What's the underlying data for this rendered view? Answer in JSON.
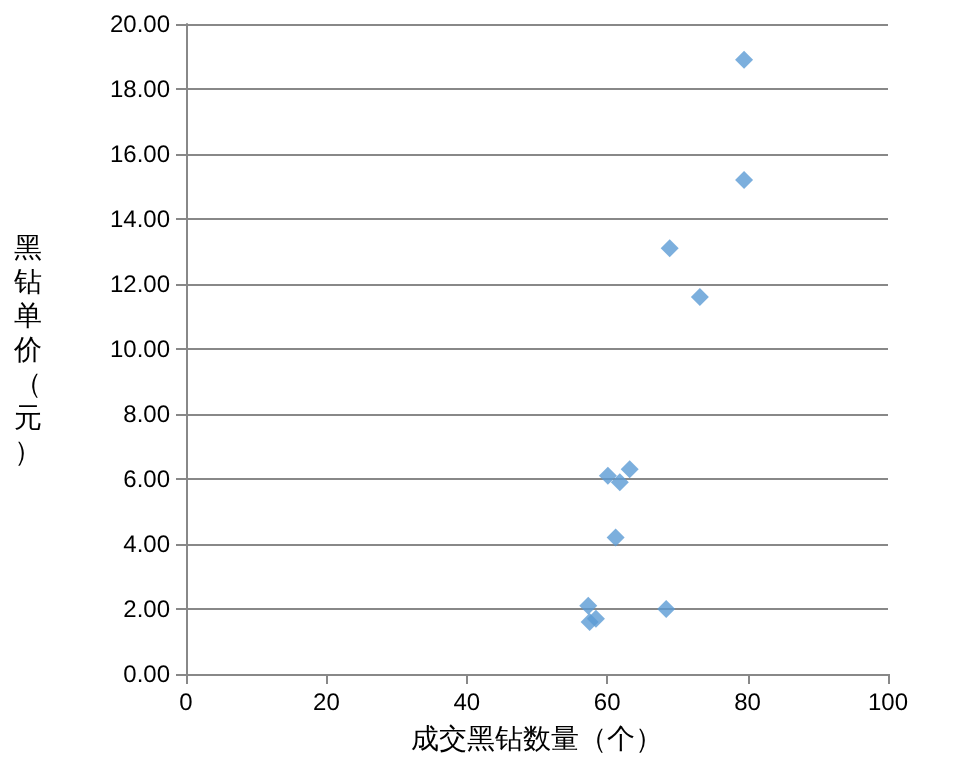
{
  "chart_data": {
    "type": "scatter",
    "xlabel": "成交黑钻数量（个）",
    "ylabel": "黑钻单价（元）",
    "x": [
      79.5,
      79.5,
      68.9,
      73.2,
      60.1,
      61.8,
      63.2,
      61.2,
      57.3,
      57.5,
      58.4,
      68.4
    ],
    "series": [
      {
        "color": "#5b9bd5",
        "values": [
          18.9,
          15.2,
          13.1,
          11.6,
          6.1,
          5.9,
          6.3,
          4.2,
          2.1,
          1.6,
          1.7,
          2.0
        ]
      }
    ],
    "xlim": [
      0,
      100
    ],
    "xticks": [
      0,
      20,
      40,
      60,
      80,
      100
    ],
    "ylim": [
      0,
      20
    ],
    "yticks": [
      {
        "value": 0,
        "label": "0.00"
      },
      {
        "value": 2,
        "label": "2.00"
      },
      {
        "value": 4,
        "label": "4.00"
      },
      {
        "value": 6,
        "label": "6.00"
      },
      {
        "value": 8,
        "label": "8.00"
      },
      {
        "value": 10,
        "label": "10.00"
      },
      {
        "value": 12,
        "label": "12.00"
      },
      {
        "value": 14,
        "label": "14.00"
      },
      {
        "value": 16,
        "label": "16.00"
      },
      {
        "value": 18,
        "label": "18.00"
      },
      {
        "value": 20,
        "label": "20.00"
      }
    ],
    "grid": "y",
    "marker": "diamond"
  }
}
